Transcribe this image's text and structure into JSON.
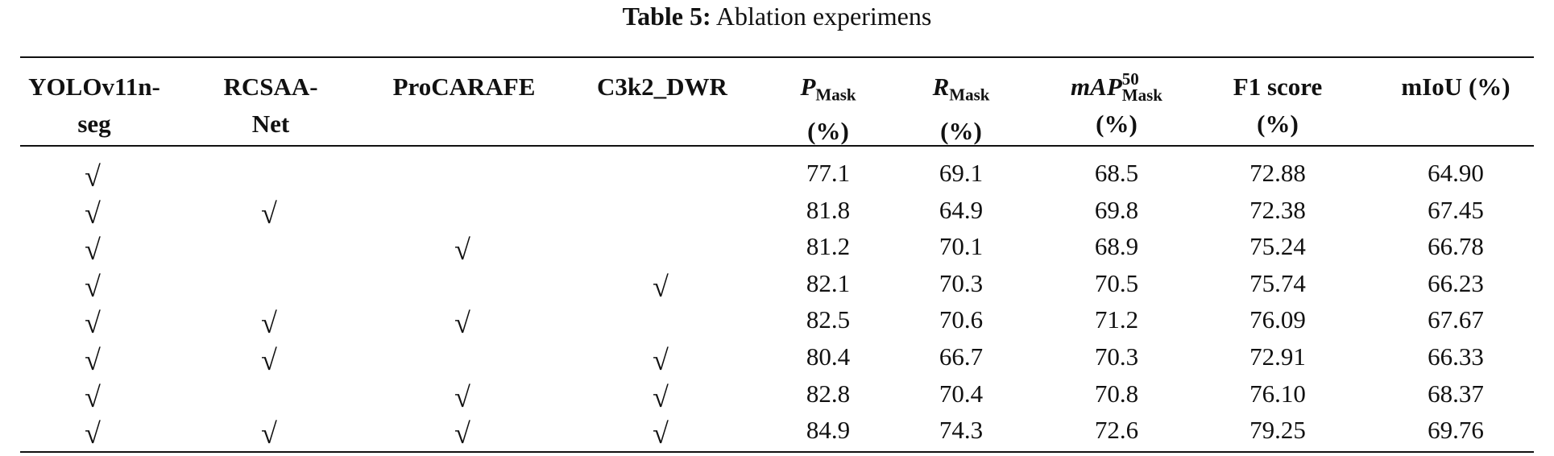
{
  "caption": {
    "label": "Table 5:",
    "text": "Ablation experimens"
  },
  "table": {
    "columns": [
      {
        "lines": [
          "YOLOv11n-",
          "seg"
        ]
      },
      {
        "lines": [
          "RCSAA-",
          "Net"
        ]
      },
      {
        "lines": [
          "ProCARAFE"
        ]
      },
      {
        "lines": [
          "C3k2_DWR"
        ]
      },
      {
        "symbol": "P",
        "sub": "Mask",
        "unit": "(%)"
      },
      {
        "symbol": "R",
        "sub": "Mask",
        "unit": "(%)"
      },
      {
        "symbol": "mAP",
        "sup": "50",
        "sub": "Mask",
        "unit": "(%)"
      },
      {
        "lines": [
          "F1 score",
          "(%)"
        ]
      },
      {
        "lines": [
          "mIoU (%)"
        ]
      }
    ],
    "rows": [
      [
        "√",
        null,
        null,
        null,
        "77.1",
        "69.1",
        "68.5",
        "72.88",
        "64.90"
      ],
      [
        "√",
        "√",
        null,
        null,
        "81.8",
        "64.9",
        "69.8",
        "72.38",
        "67.45"
      ],
      [
        "√",
        null,
        "√",
        null,
        "81.2",
        "70.1",
        "68.9",
        "75.24",
        "66.78"
      ],
      [
        "√",
        null,
        null,
        "√",
        "82.1",
        "70.3",
        "70.5",
        "75.74",
        "66.23"
      ],
      [
        "√",
        "√",
        "√",
        null,
        "82.5",
        "70.6",
        "71.2",
        "76.09",
        "67.67"
      ],
      [
        "√",
        "√",
        null,
        "√",
        "80.4",
        "66.7",
        "70.3",
        "72.91",
        "66.33"
      ],
      [
        "√",
        null,
        "√",
        "√",
        "82.8",
        "70.4",
        "70.8",
        "76.10",
        "68.37"
      ],
      [
        "√",
        "√",
        "√",
        "√",
        "84.9",
        "74.3",
        "72.6",
        "79.25",
        "69.76"
      ]
    ]
  }
}
